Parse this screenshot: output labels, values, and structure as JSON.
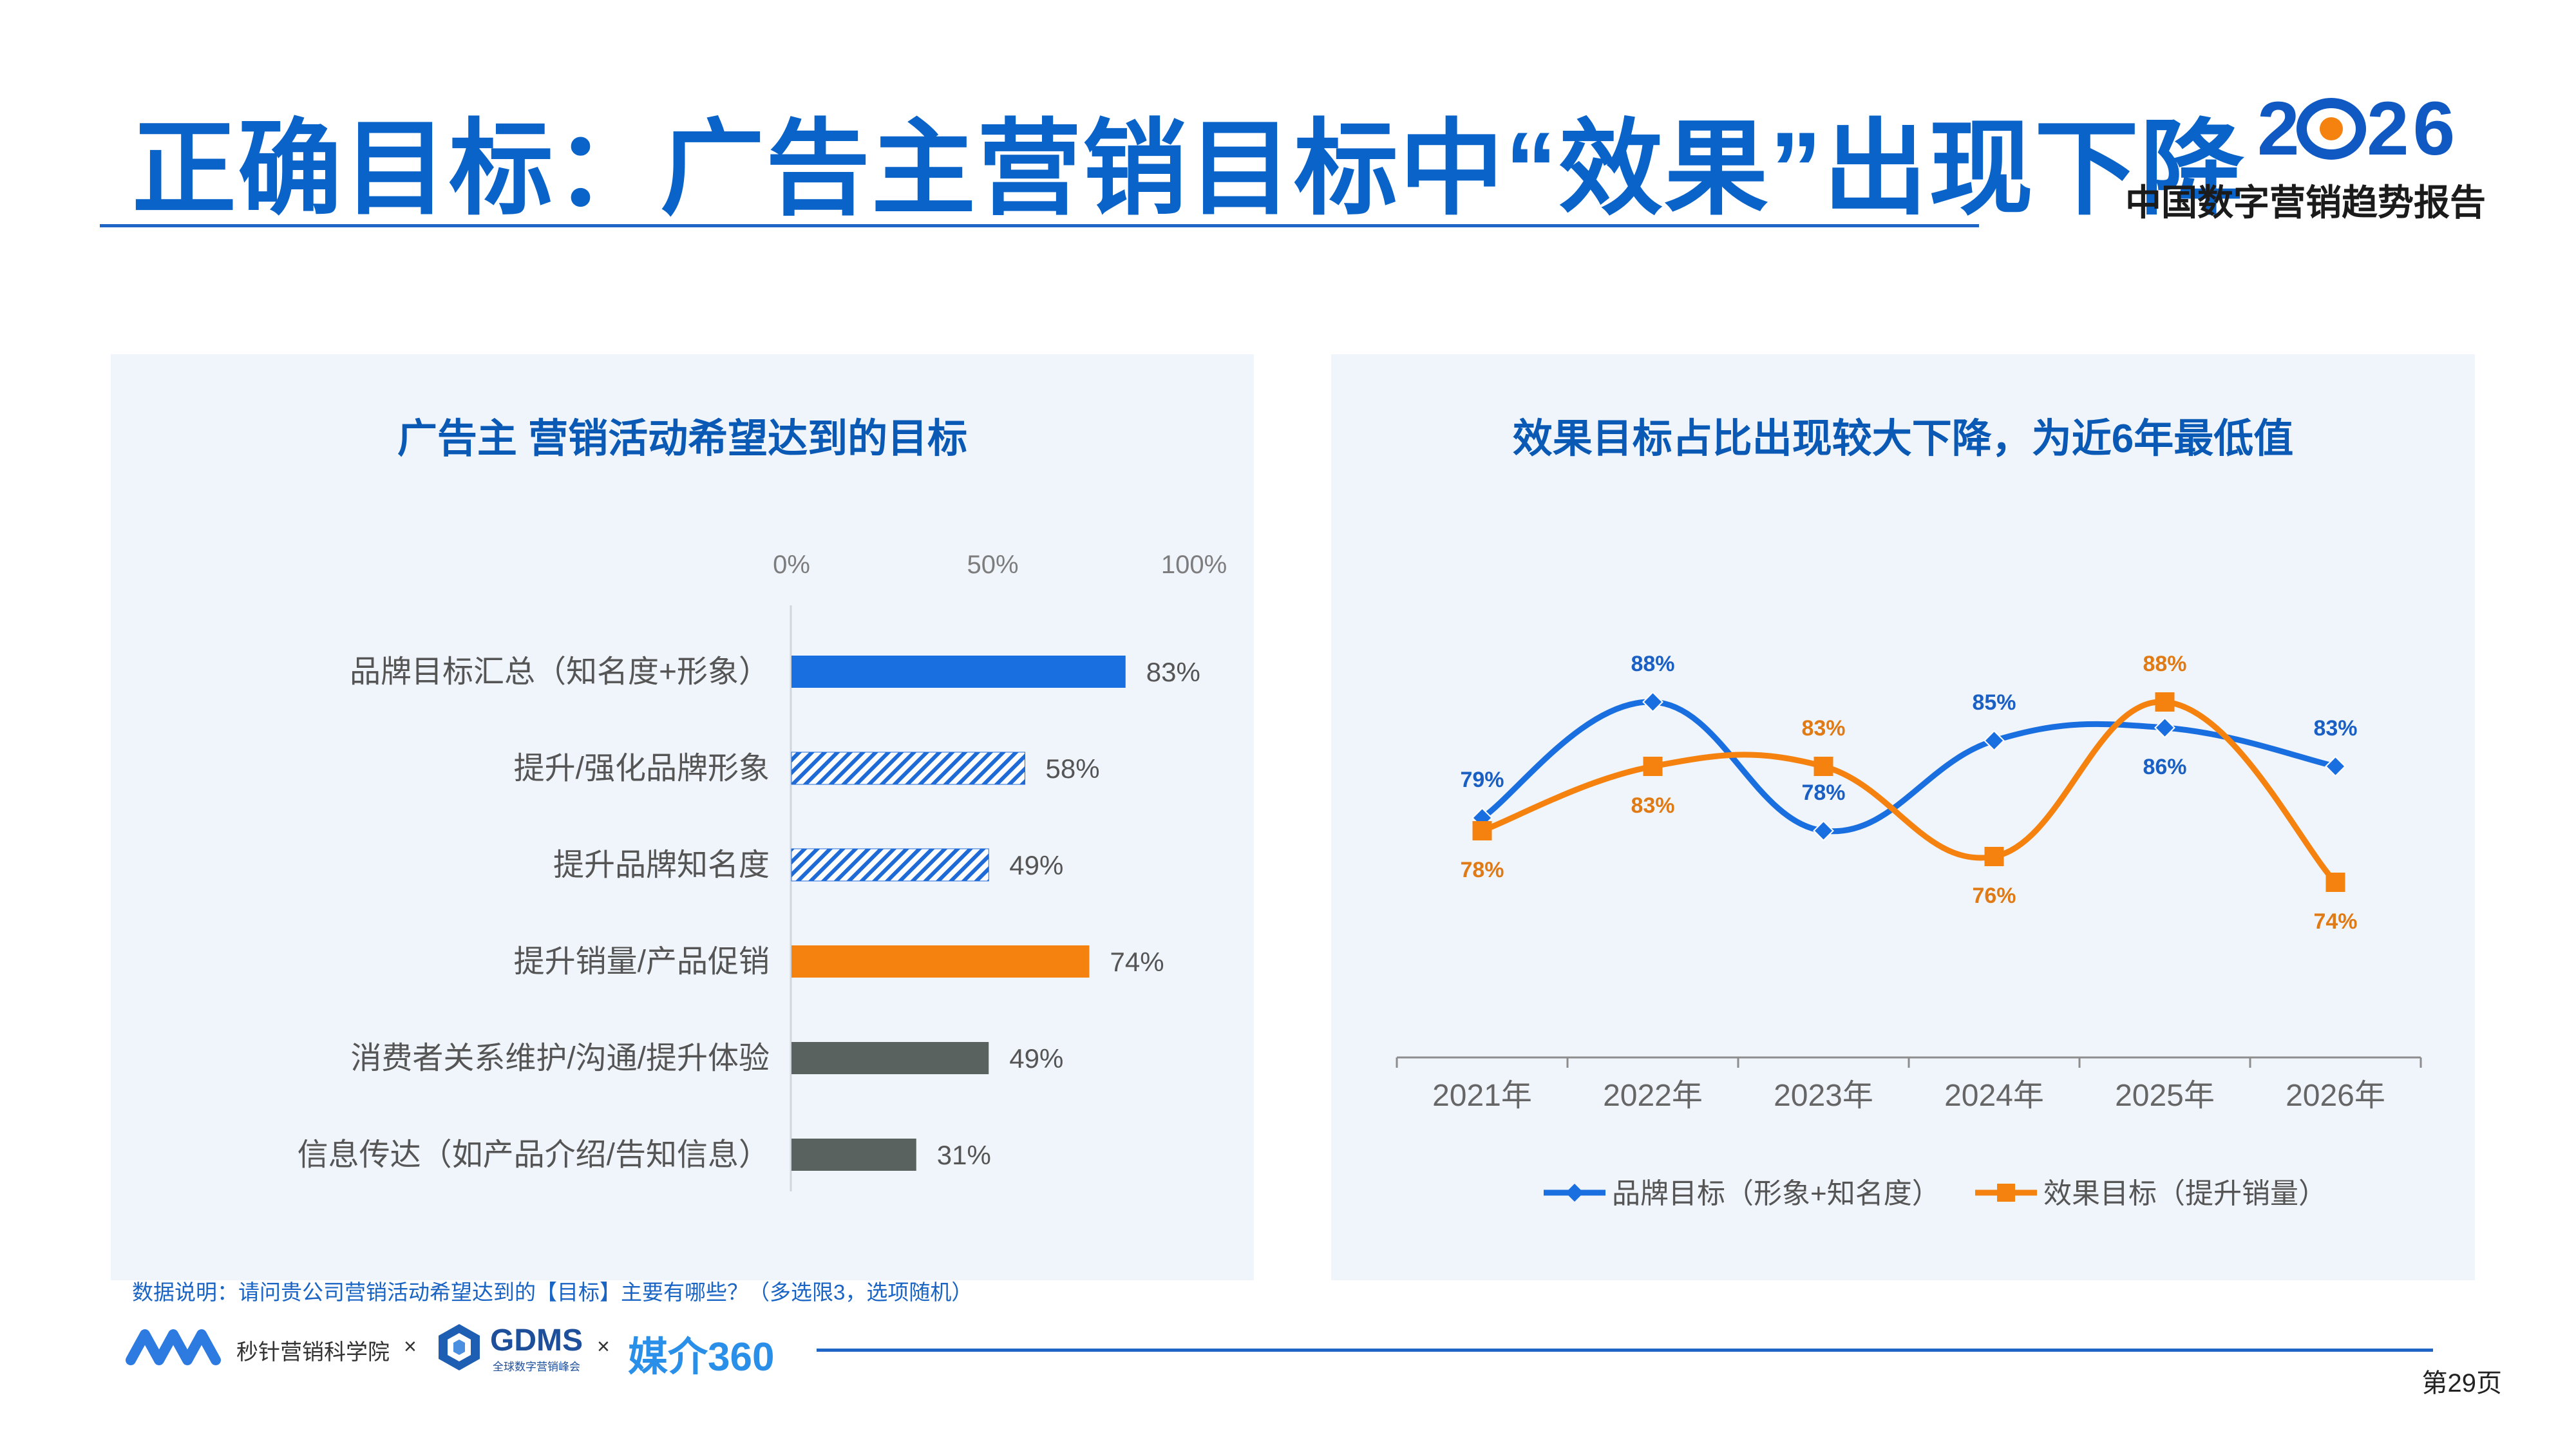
{
  "header": {
    "title": "正确目标：广告主营销目标中“效果”出现下降",
    "logo_year": "2026",
    "logo_subtitle": "中国数字营销趋势报告"
  },
  "colors": {
    "primary": "#0a63c9",
    "panel_bg": "#f0f4fb",
    "blue": "#1a6fe0",
    "orange": "#f5820f",
    "gray": "#5a6260"
  },
  "left_panel": {
    "title": "广告主 营销活动希望达到的目标"
  },
  "right_panel": {
    "title": "效果目标占比出现较大下降，为近6年最低值"
  },
  "chart_data": [
    {
      "type": "bar",
      "orientation": "horizontal",
      "title": "广告主 营销活动希望达到的目标",
      "categories": [
        "品牌目标汇总（知名度+形象）",
        "提升/强化品牌形象",
        "提升品牌知名度",
        "提升销量/产品促销",
        "消费者关系维护/沟通/提升体验",
        "信息传达（如产品介绍/告知信息）"
      ],
      "values": [
        83,
        58,
        49,
        74,
        49,
        31
      ],
      "value_labels": [
        "83%",
        "58%",
        "49%",
        "74%",
        "49%",
        "31%"
      ],
      "bar_styles": [
        "solid-blue",
        "hatched-blue",
        "hatched-blue",
        "solid-orange",
        "solid-gray",
        "solid-gray"
      ],
      "xlim": [
        0,
        100
      ],
      "x_ticks": [
        "0%",
        "50%",
        "100%"
      ],
      "x_tick_values": [
        0,
        50,
        100
      ]
    },
    {
      "type": "line",
      "title": "效果目标占比出现较大下降，为近6年最低值",
      "categories": [
        "2021年",
        "2022年",
        "2023年",
        "2024年",
        "2025年",
        "2026年"
      ],
      "ylim": [
        60,
        100
      ],
      "series": [
        {
          "name": "品牌目标（形象+知名度）",
          "marker": "diamond",
          "color": "#1a6fe0",
          "values": [
            79,
            88,
            78,
            85,
            86,
            83
          ],
          "labels": [
            "79%",
            "88%",
            "78%",
            "85%",
            "86%",
            "83%"
          ]
        },
        {
          "name": "效果目标（提升销量）",
          "marker": "square",
          "color": "#f5820f",
          "values": [
            78,
            83,
            83,
            76,
            88,
            74
          ],
          "labels": [
            "78%",
            "83%",
            "83%",
            "76%",
            "88%",
            "74%"
          ]
        }
      ]
    }
  ],
  "footer": {
    "note": "数据说明：请问贵公司营销活动希望达到的【目标】主要有哪些？（多选限3，选项随机）",
    "brand1": "秒针营销科学院",
    "times": "×",
    "gdms": "GDMS",
    "gdms_sub": "全球数字营销峰会",
    "brand3": "媒介360",
    "page": "第29页"
  }
}
